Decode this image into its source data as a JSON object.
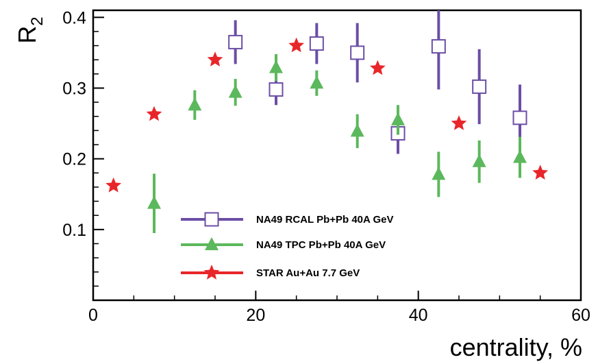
{
  "chart_data": {
    "type": "scatter",
    "xlabel": "centrality, %",
    "ylabel": "R",
    "ylabel_sub": "2",
    "xlim": [
      0,
      60
    ],
    "ylim": [
      0,
      0.41
    ],
    "xticks": [
      0,
      20,
      40,
      60
    ],
    "xtick_labels": [
      "0",
      "20",
      "40",
      "60"
    ],
    "yticks": [
      0.1,
      0.2,
      0.3,
      0.4
    ],
    "ytick_labels": [
      "0.1",
      "0.2",
      "0.3",
      "0.4"
    ],
    "grid": false,
    "legend_position": "bottom-center",
    "series": [
      {
        "name": "NA49 RCAL  Pb+Pb 40A GeV",
        "marker": "open-square",
        "color": "#6b4ea6",
        "x": [
          17.5,
          22.5,
          27.5,
          32.5,
          37.5,
          42.5,
          47.5,
          52.5
        ],
        "y": [
          0.365,
          0.298,
          0.363,
          0.35,
          0.236,
          0.359,
          0.302,
          0.258
        ],
        "yerr": [
          0.031,
          0.022,
          0.029,
          0.042,
          0.029,
          0.061,
          0.053,
          0.047
        ]
      },
      {
        "name": "NA49 TPC Pb+Pb 40A GeV",
        "marker": "triangle",
        "color": "#5cb85c",
        "x": [
          7.5,
          12.5,
          17.5,
          22.5,
          27.5,
          32.5,
          37.5,
          42.5,
          47.5,
          52.5
        ],
        "y": [
          0.137,
          0.276,
          0.294,
          0.329,
          0.307,
          0.239,
          0.255,
          0.178,
          0.196,
          0.202
        ],
        "yerr": [
          0.042,
          0.021,
          0.019,
          0.019,
          0.018,
          0.024,
          0.021,
          0.032,
          0.03,
          0.029
        ]
      },
      {
        "name": "STAR Au+Au 7.7 GeV",
        "marker": "star",
        "color": "#e8262a",
        "x": [
          2.5,
          7.5,
          15,
          25,
          35,
          45,
          55
        ],
        "y": [
          0.162,
          0.263,
          0.34,
          0.36,
          0.328,
          0.25,
          0.18
        ],
        "yerr": [
          0,
          0,
          0,
          0,
          0,
          0,
          0
        ]
      }
    ]
  }
}
